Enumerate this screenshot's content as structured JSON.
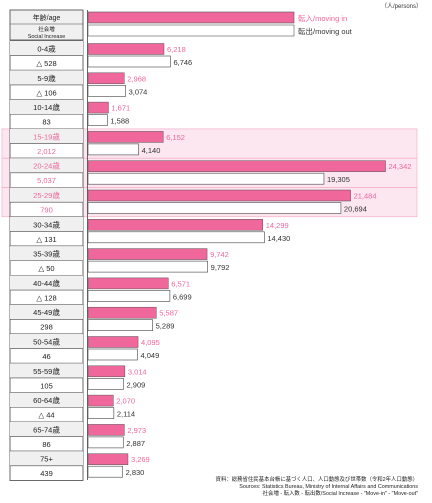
{
  "unit_label": "（人/persons）",
  "header": {
    "age_label": "年齢/age",
    "social_label_jp": "社会増",
    "social_label_en": "Social Increase",
    "legend_in": "転入/moving in",
    "legend_out": "転出/moving out"
  },
  "colors": {
    "in_bar": "#f0679c",
    "in_text": "#f0679c",
    "out_bar": "#ffffff",
    "highlight": "#fce6ef",
    "label_bg": "#f0f0f0"
  },
  "chart_data": {
    "type": "bar",
    "categories": [
      "0-4歳",
      "5-9歳",
      "10-14歳",
      "15-19歳",
      "20-24歳",
      "25-29歳",
      "30-34歳",
      "35-39歳",
      "40-44歳",
      "45-49歳",
      "50-54歳",
      "55-59歳",
      "60-64歳",
      "65-74歳",
      "75+"
    ],
    "social_increase": [
      "△ 528",
      "△ 106",
      "83",
      "2,012",
      "5,037",
      "790",
      "△ 131",
      "△ 50",
      "△ 128",
      "298",
      "46",
      "105",
      "△ 44",
      "86",
      "439"
    ],
    "highlighted": [
      false,
      false,
      false,
      true,
      true,
      true,
      false,
      false,
      false,
      false,
      false,
      false,
      false,
      false,
      false
    ],
    "series": [
      {
        "name": "転入/moving in",
        "values": [
          6218,
          2968,
          1671,
          6152,
          24342,
          21484,
          14299,
          9742,
          6571,
          5587,
          4095,
          3014,
          2070,
          2973,
          3269
        ],
        "labels": [
          "6,218",
          "2,968",
          "1,671",
          "6,152",
          "24,342",
          "21,484",
          "14,299",
          "9,742",
          "6,571",
          "5,587",
          "4,095",
          "3,014",
          "2,070",
          "2,973",
          "3,269"
        ]
      },
      {
        "name": "転出/moving out",
        "values": [
          6746,
          3074,
          1588,
          4140,
          19305,
          20694,
          14430,
          9792,
          6699,
          5289,
          4049,
          2909,
          2114,
          2887,
          2830
        ],
        "labels": [
          "6,746",
          "3,074",
          "1,588",
          "4,140",
          "19,305",
          "20,694",
          "14,430",
          "9,792",
          "6,699",
          "5,289",
          "4,049",
          "2,909",
          "2,114",
          "2,887",
          "2,830"
        ]
      }
    ],
    "xlim": [
      0,
      27000
    ]
  },
  "footer": {
    "line1": "資料：総務省住民基本台帳に基づく人口、人口動態及び世帯数（令和2年人口動態）",
    "line2": "Sources: Statistics Bureau, Ministry of Internal Affairs and Communications",
    "line3": "社会増 - 転入数 - 転出数/Social Increase - \"Move-in\" - \"Move-out\""
  }
}
